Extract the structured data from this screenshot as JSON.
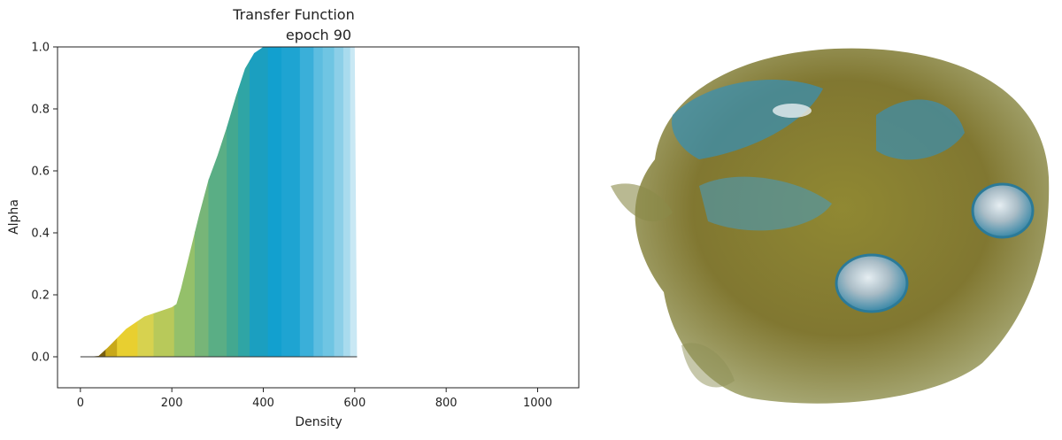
{
  "chart_data": {
    "type": "area",
    "title": "Transfer Function",
    "subtitle": "epoch 90",
    "xlabel": "Density",
    "ylabel": "Alpha",
    "xlim": [
      -50,
      1090
    ],
    "ylim": [
      -0.1,
      1.0
    ],
    "xticks": [
      0,
      200,
      400,
      600,
      800,
      1000
    ],
    "yticks": [
      0.0,
      0.2,
      0.4,
      0.6,
      0.8,
      1.0
    ],
    "grid": false,
    "series": [
      {
        "x": [
          0,
          20,
          40,
          60,
          80,
          100,
          120,
          140,
          160,
          180,
          200,
          210,
          220,
          240,
          260,
          280,
          300,
          320,
          340,
          360,
          380,
          400,
          410,
          420,
          440,
          460,
          480,
          500,
          520,
          540,
          560,
          580,
          600,
          605
        ],
        "y": [
          0.0,
          0.0,
          0.003,
          0.03,
          0.06,
          0.09,
          0.11,
          0.13,
          0.14,
          0.15,
          0.16,
          0.17,
          0.22,
          0.34,
          0.46,
          0.57,
          0.65,
          0.74,
          0.84,
          0.93,
          0.98,
          1.0,
          1.0,
          1.0,
          1.0,
          1.0,
          1.0,
          1.0,
          1.0,
          1.0,
          1.0,
          1.0,
          1.0,
          0.0
        ]
      }
    ],
    "color_bands": [
      {
        "x0": 0,
        "x1": 30,
        "color": "#4a3a10"
      },
      {
        "x0": 30,
        "x1": 55,
        "color": "#7a6010"
      },
      {
        "x0": 55,
        "x1": 80,
        "color": "#c8a81a"
      },
      {
        "x0": 80,
        "x1": 125,
        "color": "#e8cf30"
      },
      {
        "x0": 125,
        "x1": 160,
        "color": "#d7d24f"
      },
      {
        "x0": 160,
        "x1": 205,
        "color": "#b8c95a"
      },
      {
        "x0": 205,
        "x1": 250,
        "color": "#94c06a"
      },
      {
        "x0": 250,
        "x1": 280,
        "color": "#77b578"
      },
      {
        "x0": 280,
        "x1": 320,
        "color": "#5aae85"
      },
      {
        "x0": 320,
        "x1": 345,
        "color": "#43a890"
      },
      {
        "x0": 345,
        "x1": 370,
        "color": "#2fa5a5"
      },
      {
        "x0": 370,
        "x1": 410,
        "color": "#1b9fc0"
      },
      {
        "x0": 410,
        "x1": 440,
        "color": "#12a0cf"
      },
      {
        "x0": 440,
        "x1": 480,
        "color": "#1ea4d2"
      },
      {
        "x0": 480,
        "x1": 510,
        "color": "#3aafd9"
      },
      {
        "x0": 510,
        "x1": 530,
        "color": "#5dbde0"
      },
      {
        "x0": 530,
        "x1": 555,
        "color": "#6fc5e3"
      },
      {
        "x0": 555,
        "x1": 575,
        "color": "#8ccfe8"
      },
      {
        "x0": 575,
        "x1": 590,
        "color": "#a9dbee"
      },
      {
        "x0": 590,
        "x1": 605,
        "color": "#c9e8f4"
      }
    ]
  },
  "render_image": {
    "shell_color": "#7c7a2a",
    "highlight_color": "#3a8fb0"
  }
}
